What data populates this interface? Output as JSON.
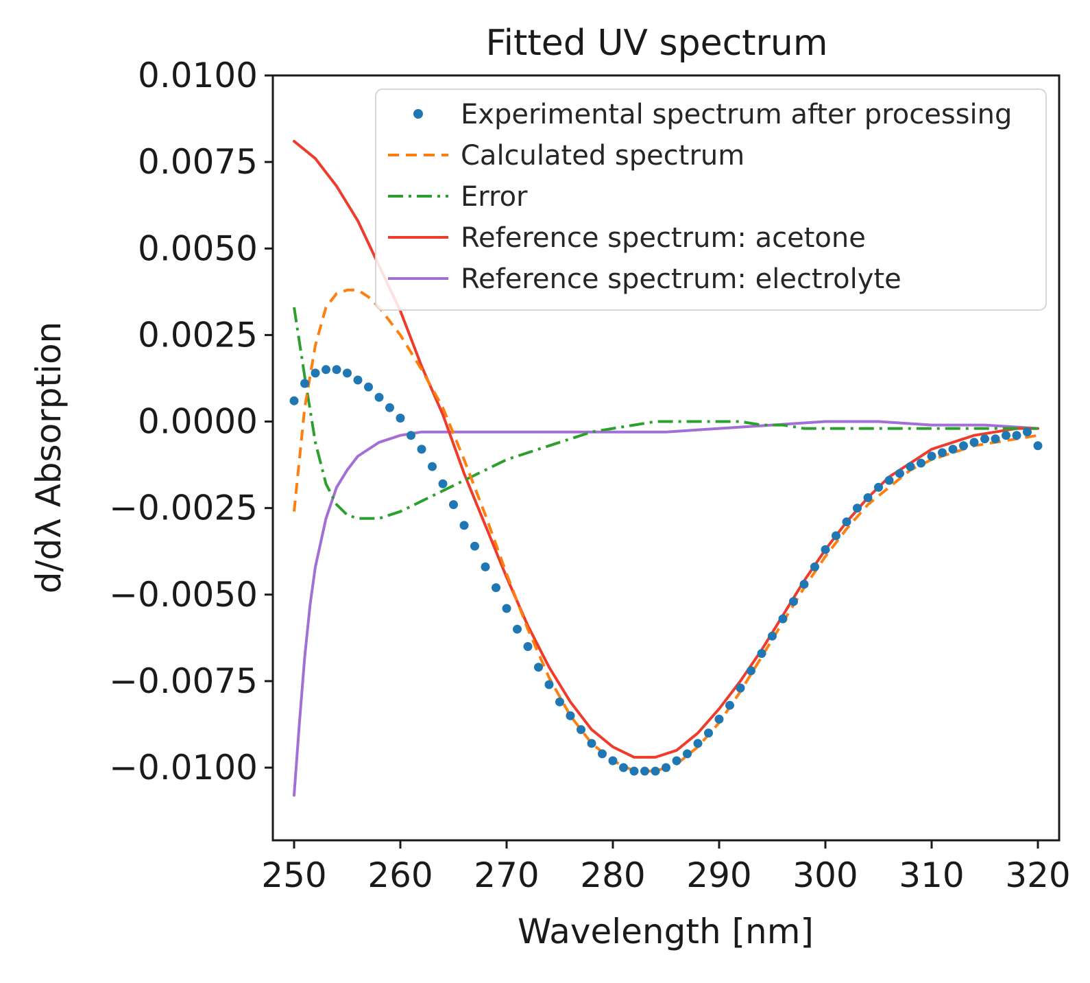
{
  "chart_data": {
    "type": "line",
    "title": "Fitted UV spectrum",
    "xlabel": "Wavelength [nm]",
    "ylabel": "d/dλ Absorption",
    "xlim": [
      248,
      322
    ],
    "ylim": [
      -0.0121,
      0.01
    ],
    "xticks": [
      250,
      260,
      270,
      280,
      290,
      300,
      310,
      320
    ],
    "xtick_labels": [
      "250",
      "260",
      "270",
      "280",
      "290",
      "300",
      "310",
      "320"
    ],
    "yticks": [
      0.01,
      0.0075,
      0.005,
      0.0025,
      0.0,
      -0.0025,
      -0.005,
      -0.0075,
      -0.01
    ],
    "ytick_labels": [
      "0.0100",
      "0.0075",
      "0.0050",
      "0.0025",
      "0.0000",
      "−0.0025",
      "−0.0050",
      "−0.0075",
      "−0.0100"
    ],
    "grid": false,
    "legend_position": "top-right",
    "series": [
      {
        "name": "Experimental spectrum after processing",
        "style": "dots",
        "color": "#1f77b4",
        "x": [
          250,
          251,
          252,
          253,
          254,
          255,
          256,
          257,
          258,
          259,
          260,
          261,
          262,
          263,
          264,
          265,
          266,
          267,
          268,
          269,
          270,
          271,
          272,
          273,
          274,
          275,
          276,
          277,
          278,
          279,
          280,
          281,
          282,
          283,
          284,
          285,
          286,
          287,
          288,
          289,
          290,
          291,
          292,
          293,
          294,
          295,
          296,
          297,
          298,
          299,
          300,
          301,
          302,
          303,
          304,
          305,
          306,
          307,
          308,
          309,
          310,
          311,
          312,
          313,
          314,
          315,
          316,
          317,
          318,
          319,
          320
        ],
        "y": [
          0.0006,
          0.0011,
          0.0014,
          0.0015,
          0.0015,
          0.0014,
          0.0012,
          0.001,
          0.0007,
          0.0004,
          0.0001,
          -0.0004,
          -0.0008,
          -0.0013,
          -0.0018,
          -0.0024,
          -0.003,
          -0.0036,
          -0.0042,
          -0.0048,
          -0.0054,
          -0.006,
          -0.0065,
          -0.0071,
          -0.0076,
          -0.0081,
          -0.0085,
          -0.0089,
          -0.0093,
          -0.0096,
          -0.0098,
          -0.01,
          -0.0101,
          -0.0101,
          -0.0101,
          -0.01,
          -0.0098,
          -0.0096,
          -0.0093,
          -0.009,
          -0.0086,
          -0.0082,
          -0.0077,
          -0.0072,
          -0.0067,
          -0.0062,
          -0.0057,
          -0.0052,
          -0.0047,
          -0.0042,
          -0.0037,
          -0.0033,
          -0.0029,
          -0.0025,
          -0.0022,
          -0.0019,
          -0.0017,
          -0.0015,
          -0.0013,
          -0.0012,
          -0.001,
          -0.0009,
          -0.0008,
          -0.0007,
          -0.0006,
          -0.0005,
          -0.0005,
          -0.0004,
          -0.0004,
          -0.0003,
          -0.0007
        ]
      },
      {
        "name": "Calculated spectrum",
        "style": "dashed",
        "color": "#ff7f0e",
        "x": [
          250,
          251,
          252,
          253,
          254,
          255,
          256,
          257,
          258,
          259,
          260,
          262,
          264,
          266,
          268,
          270,
          272,
          274,
          276,
          278,
          280,
          282,
          284,
          286,
          288,
          290,
          292,
          294,
          296,
          298,
          300,
          302,
          304,
          306,
          308,
          310,
          312,
          314,
          316,
          318,
          320
        ],
        "y": [
          -0.0026,
          0.0004,
          0.0022,
          0.0033,
          0.0037,
          0.0038,
          0.0038,
          0.0036,
          0.0033,
          0.0029,
          0.0025,
          0.0015,
          0.0004,
          -0.0011,
          -0.0027,
          -0.0044,
          -0.006,
          -0.0074,
          -0.0085,
          -0.0093,
          -0.0098,
          -0.0101,
          -0.0101,
          -0.0099,
          -0.0094,
          -0.0087,
          -0.0078,
          -0.0068,
          -0.0058,
          -0.0048,
          -0.0039,
          -0.0031,
          -0.0024,
          -0.0019,
          -0.0014,
          -0.0011,
          -0.0009,
          -0.0007,
          -0.0006,
          -0.0005,
          -0.0004
        ]
      },
      {
        "name": "Error",
        "style": "dashdot",
        "color": "#2ca02c",
        "x": [
          250,
          251,
          252,
          253,
          254,
          255,
          256,
          257,
          258,
          259,
          260,
          262,
          264,
          266,
          268,
          270,
          272,
          274,
          276,
          278,
          280,
          282,
          284,
          286,
          288,
          290,
          292,
          294,
          296,
          298,
          300,
          302,
          304,
          306,
          308,
          310,
          312,
          314,
          316,
          318,
          320
        ],
        "y": [
          0.0033,
          0.0013,
          -0.0006,
          -0.0018,
          -0.0024,
          -0.0027,
          -0.0028,
          -0.0028,
          -0.0028,
          -0.0027,
          -0.0026,
          -0.0023,
          -0.002,
          -0.0017,
          -0.0014,
          -0.0011,
          -0.0009,
          -0.0007,
          -0.0005,
          -0.0003,
          -0.0002,
          -0.0001,
          0.0,
          0.0,
          0.0,
          0.0,
          0.0,
          -0.0001,
          -0.0001,
          -0.0002,
          -0.0002,
          -0.0002,
          -0.0002,
          -0.0002,
          -0.0002,
          -0.0002,
          -0.0002,
          -0.0002,
          -0.0002,
          -0.0002,
          -0.0002
        ]
      },
      {
        "name": "Reference spectrum: acetone",
        "style": "solid",
        "color": "#ef3b2c",
        "x": [
          250,
          252,
          254,
          256,
          258,
          260,
          262,
          264,
          266,
          268,
          270,
          272,
          274,
          276,
          278,
          280,
          282,
          284,
          286,
          288,
          290,
          292,
          294,
          296,
          298,
          300,
          302,
          304,
          306,
          308,
          310,
          312,
          314,
          316,
          318,
          320
        ],
        "y": [
          0.0081,
          0.0076,
          0.0068,
          0.0058,
          0.0045,
          0.0032,
          0.0016,
          0.0002,
          -0.0015,
          -0.003,
          -0.0045,
          -0.0059,
          -0.0071,
          -0.0081,
          -0.0089,
          -0.0094,
          -0.0097,
          -0.0097,
          -0.0095,
          -0.009,
          -0.0083,
          -0.0075,
          -0.0066,
          -0.0056,
          -0.0046,
          -0.0037,
          -0.0029,
          -0.0022,
          -0.0016,
          -0.0012,
          -0.0008,
          -0.0006,
          -0.0004,
          -0.0003,
          -0.0002,
          -0.0002
        ]
      },
      {
        "name": "Reference spectrum: electrolyte",
        "style": "solid",
        "color": "#a26fd6",
        "x": [
          250,
          250.5,
          251,
          251.5,
          252,
          253,
          254,
          255,
          256,
          258,
          260,
          262,
          265,
          268,
          270,
          275,
          280,
          285,
          290,
          295,
          300,
          305,
          310,
          315,
          320
        ],
        "y": [
          -0.0108,
          -0.0087,
          -0.0068,
          -0.0053,
          -0.0042,
          -0.0028,
          -0.0019,
          -0.0014,
          -0.001,
          -0.0006,
          -0.0004,
          -0.0003,
          -0.0003,
          -0.0003,
          -0.0003,
          -0.0003,
          -0.0003,
          -0.0003,
          -0.0002,
          -0.0001,
          0.0,
          0.0,
          -0.0001,
          -0.0001,
          -0.0002
        ]
      }
    ]
  }
}
